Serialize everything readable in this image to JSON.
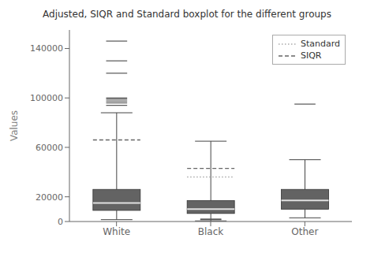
{
  "chart_data": {
    "type": "box",
    "title": "Adjusted, SIQR and Standard boxplot for the different groups",
    "ylabel": "Values",
    "categories": [
      "White",
      "Black",
      "Other"
    ],
    "boxes": [
      {
        "q1": 9000,
        "median": 15000,
        "q3": 26000,
        "whisker_low": 1500,
        "whisker_high": 88000,
        "outliers": [
          94000,
          96000,
          97500,
          99000,
          100000,
          120000,
          130000,
          146000
        ]
      },
      {
        "q1": 6500,
        "median": 10000,
        "q3": 17000,
        "whisker_low": 500,
        "whisker_high": 65000,
        "outliers": [
          1500,
          2000
        ]
      },
      {
        "q1": 10000,
        "median": 17000,
        "q3": 26000,
        "whisker_low": 3000,
        "whisker_high": 50000,
        "outliers": [
          95000
        ]
      }
    ],
    "color": "#636363",
    "median_color": "#e0e0e0",
    "series": [
      {
        "name": "Standard",
        "color": "#aaaaaa",
        "line_style": "dotted",
        "values": [
          null,
          36000,
          null
        ]
      },
      {
        "name": "SIQR",
        "color": "#666666",
        "line_style": "dashed",
        "values": [
          66000,
          43000,
          null
        ]
      }
    ],
    "ylim": [
      0,
      155000
    ],
    "yticks": [
      0,
      20000,
      60000,
      100000,
      140000
    ],
    "grid": false,
    "legend": "upper right"
  }
}
